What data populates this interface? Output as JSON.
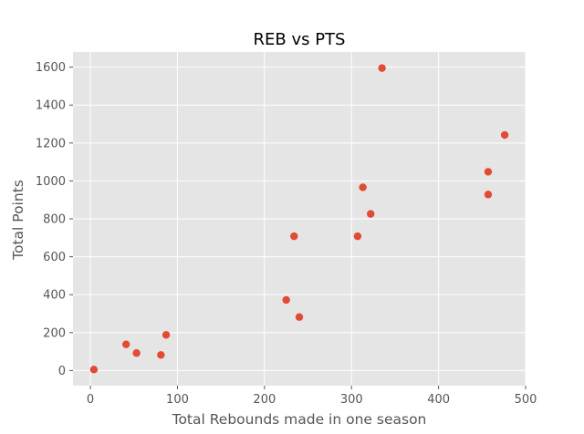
{
  "chart_data": {
    "type": "scatter",
    "title": "REB vs PTS",
    "xlabel": "Total Rebounds made in one season",
    "ylabel": "Total Points",
    "xlim": [
      -20,
      500
    ],
    "ylim": [
      -80,
      1680
    ],
    "xticks": [
      0,
      100,
      200,
      300,
      400,
      500
    ],
    "yticks": [
      0,
      200,
      400,
      600,
      800,
      1000,
      1200,
      1400,
      1600
    ],
    "grid": true,
    "style": "ggplot",
    "colors": {
      "background": "#E5E5E5",
      "grid": "#FFFFFF",
      "marker": "#E24A33"
    },
    "points": [
      {
        "x": 4,
        "y": 5
      },
      {
        "x": 41,
        "y": 138
      },
      {
        "x": 53,
        "y": 92
      },
      {
        "x": 81,
        "y": 82
      },
      {
        "x": 87,
        "y": 188
      },
      {
        "x": 225,
        "y": 372
      },
      {
        "x": 234,
        "y": 708
      },
      {
        "x": 240,
        "y": 282
      },
      {
        "x": 307,
        "y": 708
      },
      {
        "x": 313,
        "y": 966
      },
      {
        "x": 322,
        "y": 826
      },
      {
        "x": 335,
        "y": 1595
      },
      {
        "x": 457,
        "y": 1048
      },
      {
        "x": 457,
        "y": 928
      },
      {
        "x": 476,
        "y": 1242
      }
    ]
  }
}
